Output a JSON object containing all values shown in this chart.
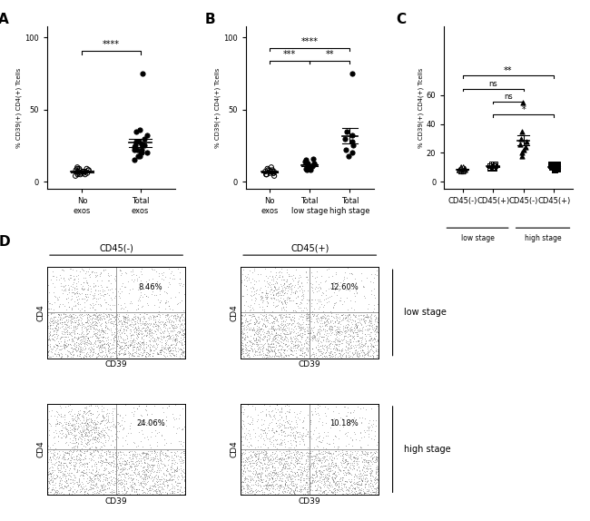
{
  "panel_A": {
    "label": "A",
    "groups": [
      "No\nexos",
      "Total\nexos"
    ],
    "no_exos": [
      5,
      8,
      7,
      6,
      9,
      10,
      8,
      6,
      7,
      5,
      4,
      8,
      9,
      7,
      6,
      5,
      8,
      7,
      6,
      9
    ],
    "total_exos": [
      20,
      25,
      22,
      28,
      18,
      30,
      35,
      20,
      22,
      24,
      26,
      28,
      15,
      20,
      32,
      25,
      18,
      22,
      75,
      36
    ],
    "ylabel": "% CD39(+) CD4(+) Tcells",
    "yticks": [
      0,
      50,
      100
    ],
    "significance": "****"
  },
  "panel_B": {
    "label": "B",
    "groups": [
      "No\nexos",
      "Total\nlow stage",
      "Total\nhigh stage"
    ],
    "no_exos": [
      5,
      8,
      7,
      6,
      9,
      10,
      8,
      6,
      7,
      5,
      4,
      8,
      7,
      6
    ],
    "total_low": [
      10,
      12,
      15,
      8,
      14,
      11,
      9,
      13,
      16,
      10,
      12,
      8,
      14,
      11,
      9,
      13
    ],
    "total_high": [
      28,
      35,
      30,
      25,
      20,
      32,
      75,
      22,
      18
    ],
    "ylabel": "% CD39(+) CD4(+) Tcells",
    "yticks": [
      0,
      50,
      100
    ],
    "sig_no_low": "***",
    "sig_no_high": "****",
    "sig_low_high": "**"
  },
  "panel_C": {
    "label": "C",
    "groups": [
      "CD45(-)",
      "CD45(+)",
      "CD45(-)",
      "CD45(+)"
    ],
    "low_cd45neg": [
      8,
      9,
      7,
      10,
      8,
      7,
      9,
      8,
      10,
      8
    ],
    "low_cd45pos": [
      10,
      11,
      9,
      12,
      10,
      11,
      9,
      12,
      10,
      11,
      9,
      10,
      11,
      12
    ],
    "high_cd45neg": [
      22,
      28,
      35,
      55,
      24,
      20,
      26,
      18,
      30
    ],
    "high_cd45pos": [
      10,
      12,
      8,
      11,
      9,
      10,
      12,
      8,
      11,
      9,
      10,
      12
    ],
    "ylabel": "% CD39(+) CD4(+) Tcells",
    "yticks": [
      0,
      20,
      40,
      60
    ],
    "group_labels": [
      "low stage",
      "high stage"
    ]
  },
  "panel_D": {
    "label": "D",
    "flow_pcts": [
      "8.46%",
      "12.60%",
      "24.06%",
      "10.18%"
    ],
    "flow_pct_vals": [
      8.46,
      12.6,
      24.06,
      10.18
    ],
    "col_labels": [
      "CD45(-)",
      "CD45(+)"
    ],
    "stage_labels": [
      "low stage",
      "high stage"
    ],
    "xlabel": "CD39",
    "ylabel": "CD4"
  }
}
